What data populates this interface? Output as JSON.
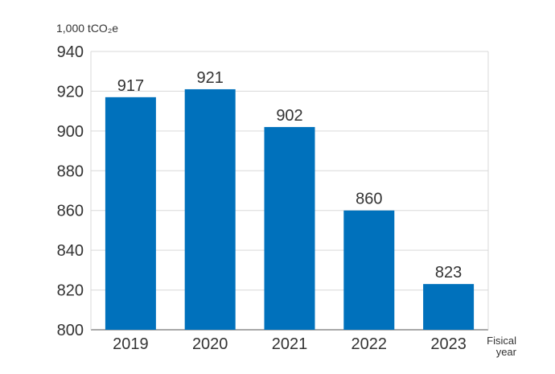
{
  "chart_data": {
    "type": "bar",
    "unit_label": "1,000 tCO₂e",
    "xlabel": "Fisical year",
    "categories": [
      "2019",
      "2020",
      "2021",
      "2022",
      "2023"
    ],
    "values": [
      917,
      921,
      902,
      860,
      823
    ],
    "data_labels": [
      "917",
      "921",
      "902",
      "860",
      "823"
    ],
    "ylim": [
      800,
      940
    ],
    "yticks": [
      "800",
      "820",
      "840",
      "860",
      "880",
      "900",
      "920",
      "940"
    ],
    "grid": true,
    "bar_color": "#0071BC",
    "grid_color": "#D9D9D9",
    "axis_color": "#8C8C8C"
  }
}
